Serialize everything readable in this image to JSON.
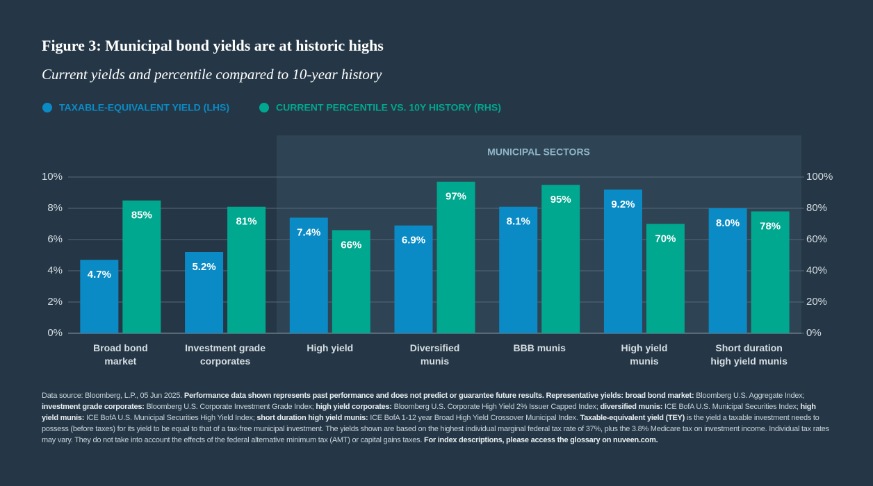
{
  "chart_data": {
    "type": "bar",
    "title": "Figure 3: Municipal bond yields are at historic highs",
    "subtitle": "Current yields and percentile compared to 10-year history",
    "annotation": "MUNICIPAL SECTORS",
    "categories": [
      "Broad bond\nmarket",
      "Investment grade\ncorporates",
      "High yield",
      "Diversified\nmunis",
      "BBB munis",
      "High yield\nmunis",
      "Short duration\nhigh yield munis"
    ],
    "series": [
      {
        "name": "TAXABLE-EQUIVALENT YIELD (LHS)",
        "color": "#0a8bc6",
        "values": [
          4.7,
          5.2,
          7.4,
          6.9,
          8.1,
          9.2,
          8.0
        ],
        "value_labels": [
          "4.7%",
          "5.2%",
          "7.4%",
          "6.9%",
          "8.1%",
          "9.2%",
          "8.0%"
        ]
      },
      {
        "name": "CURRENT PERCENTILE VS. 10Y HISTORY (RHS)",
        "color": "#00a88f",
        "axis": "y2",
        "values": [
          85,
          81,
          66,
          97,
          95,
          70,
          78
        ],
        "value_labels": [
          "85%",
          "81%",
          "66%",
          "97%",
          "95%",
          "70%",
          "78%"
        ]
      }
    ],
    "ylim": [
      0,
      10
    ],
    "yticks": [
      {
        "value": 0,
        "label": "0%"
      },
      {
        "value": 2,
        "label": "2%"
      },
      {
        "value": 4,
        "label": "4%"
      },
      {
        "value": 6,
        "label": "6%"
      },
      {
        "value": 8,
        "label": "8%"
      },
      {
        "value": 10,
        "label": "10%"
      }
    ],
    "y2lim": [
      0,
      100
    ],
    "y2ticks": [
      {
        "value": 0,
        "label": "0%"
      },
      {
        "value": 20,
        "label": "20%"
      },
      {
        "value": 40,
        "label": "40%"
      },
      {
        "value": 60,
        "label": "60%"
      },
      {
        "value": 80,
        "label": "80%"
      },
      {
        "value": 100,
        "label": "100%"
      }
    ],
    "grid": true,
    "legend": "top-left",
    "footnote": [
      {
        "text": "Data source: Bloomberg, L.P., 05 Jun 2025. ",
        "bold": false
      },
      {
        "text": "Performance data shown represents past performance and does not predict or guarantee future results. Representative yields: broad bond market:",
        "bold": true
      },
      {
        "text": " Bloomberg U.S. Aggregate Index; ",
        "bold": false
      },
      {
        "text": "investment grade corporates:",
        "bold": true
      },
      {
        "text": " Bloomberg U.S. Corporate Investment Grade Index; ",
        "bold": false
      },
      {
        "text": "high yield corporates:",
        "bold": true
      },
      {
        "text": " Bloomberg U.S. Corporate High Yield 2% Issuer Capped Index; ",
        "bold": false
      },
      {
        "text": "diversified munis:",
        "bold": true
      },
      {
        "text": " ICE BofA U.S. Municipal Securities Index; ",
        "bold": false
      },
      {
        "text": "high yield munis:",
        "bold": true
      },
      {
        "text": " ICE BofA U.S. Municipal Securities High Yield Index; ",
        "bold": false
      },
      {
        "text": "short duration high yield munis:",
        "bold": true
      },
      {
        "text": " ICE BofA 1-12 year Broad High Yield Crossover Municipal Index. ",
        "bold": false
      },
      {
        "text": "Taxable-equivalent yield (TEY)",
        "bold": true
      },
      {
        "text": " is the yield a taxable investment needs to possess (before taxes) for its yield to be equal to that of a tax-free municipal investment. The yields shown are based on the highest individual marginal federal tax rate of 37%, plus the 3.8% Medicare tax on investment income. Individual tax rates may vary. They do not take into account the effects of the federal alternative minimum tax (AMT) or capital gains taxes. ",
        "bold": false
      },
      {
        "text": "For index descriptions, please access the glossary on nuveen.com.",
        "bold": true
      }
    ]
  }
}
